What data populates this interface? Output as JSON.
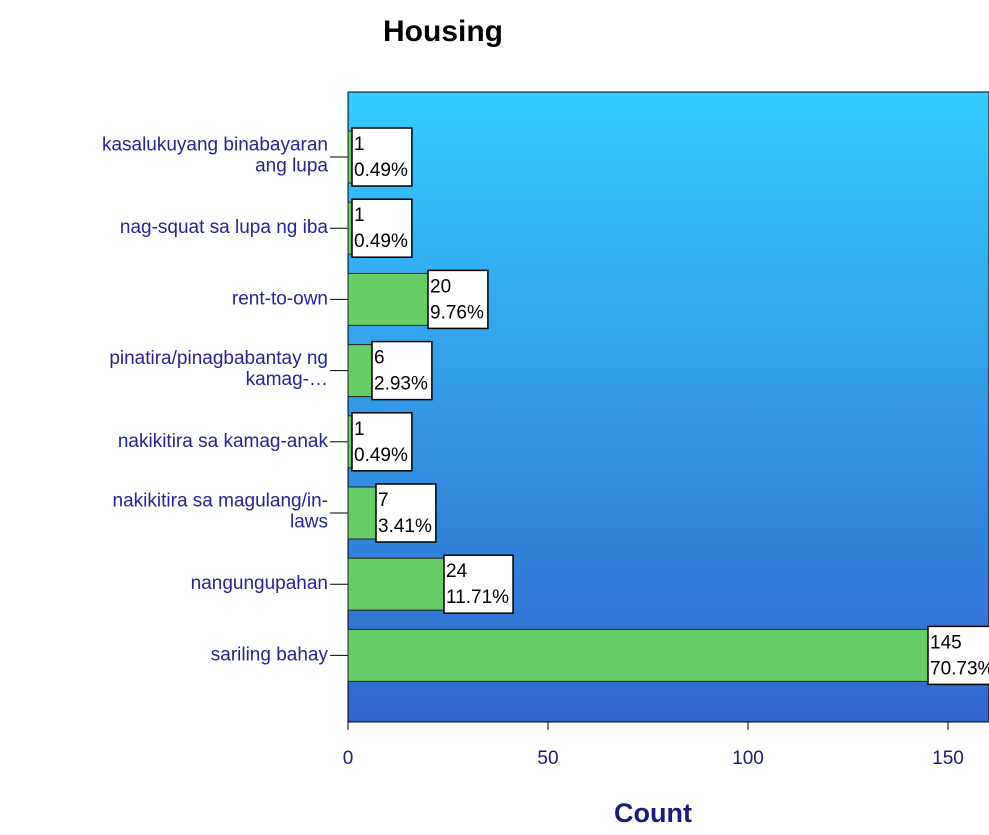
{
  "chart_data": {
    "type": "barh",
    "title": "Housing",
    "x_label": "Count",
    "categories": [
      [
        "kasalukuyang binabayaran",
        "ang lupa"
      ],
      [
        "nag-squat sa lupa ng iba"
      ],
      [
        "rent-to-own"
      ],
      [
        "pinatira/pinagbabantay ng",
        "kamag-…"
      ],
      [
        "nakikitira sa kamag-anak"
      ],
      [
        "nakikitira sa magulang/in-",
        "laws"
      ],
      [
        "nangungupahan"
      ],
      [
        "sariling bahay"
      ]
    ],
    "values": [
      1,
      1,
      20,
      6,
      1,
      7,
      24,
      145
    ],
    "percent_labels": [
      "0.49%",
      "0.49%",
      "9.76%",
      "2.93%",
      "0.49%",
      "3.41%",
      "11.71%",
      "70.73%"
    ],
    "color": "#66cc66",
    "xlim": [
      0,
      160
    ],
    "xticks": [
      0,
      50,
      100,
      150
    ]
  }
}
